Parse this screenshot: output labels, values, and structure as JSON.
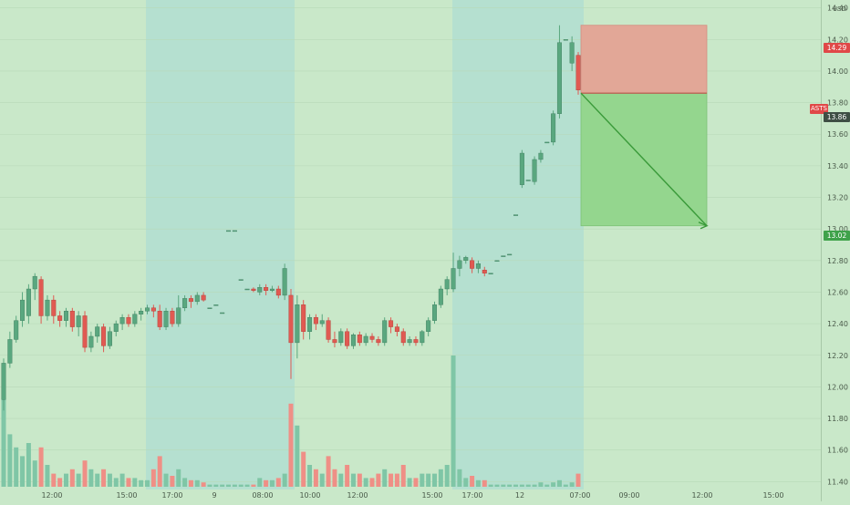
{
  "symbol": "ASTS",
  "currency": "USD",
  "price_badges": {
    "stop": "14.29",
    "entry": "13.86",
    "target": "13.02"
  },
  "colors": {
    "background": "#c9e8c9",
    "session_shade": "#b5e0d0",
    "up": "#5aa77f",
    "down": "#e05a52",
    "vol_up": "#7fc6a6",
    "vol_down": "#ef8f86",
    "risk_zone": "#e2a797",
    "reward_zone": "#94d68e",
    "arrow": "#3a9a3a"
  },
  "chart_data": {
    "type": "candlestick",
    "y_axis": {
      "ylim": [
        11.35,
        14.45
      ],
      "ticks": [
        "11.40",
        "11.60",
        "11.80",
        "12.00",
        "12.20",
        "12.40",
        "12.60",
        "12.80",
        "13.00",
        "13.20",
        "13.40",
        "13.60",
        "13.80",
        "14.00",
        "14.20",
        "14.40"
      ]
    },
    "x_ticks": [
      "12:00",
      "15:00",
      "17:00",
      "9",
      "08:00",
      "10:00",
      "12:00",
      "15:00",
      "17:00",
      "12",
      "07:00",
      "09:00",
      "12:00",
      "15:00"
    ],
    "session_shading": [
      "17:00 - 10:00",
      "16:00 - 07:00"
    ],
    "candles": [
      [
        11.92,
        12.15,
        11.85,
        12.18,
        40
      ],
      [
        12.15,
        12.3,
        12.12,
        12.35,
        24
      ],
      [
        12.3,
        12.42,
        12.28,
        12.45,
        18
      ],
      [
        12.42,
        12.55,
        12.38,
        12.6,
        14
      ],
      [
        12.45,
        12.62,
        12.4,
        12.65,
        20
      ],
      [
        12.62,
        12.7,
        12.55,
        12.72,
        12
      ],
      [
        12.68,
        12.45,
        12.4,
        12.7,
        18
      ],
      [
        12.45,
        12.55,
        12.42,
        12.58,
        10
      ],
      [
        12.55,
        12.45,
        12.4,
        12.58,
        6
      ],
      [
        12.45,
        12.42,
        12.38,
        12.48,
        4
      ],
      [
        12.42,
        12.48,
        12.38,
        12.5,
        6
      ],
      [
        12.48,
        12.38,
        12.35,
        12.5,
        8
      ],
      [
        12.38,
        12.45,
        12.32,
        12.48,
        6
      ],
      [
        12.45,
        12.25,
        12.22,
        12.48,
        12
      ],
      [
        12.25,
        12.32,
        12.22,
        12.35,
        8
      ],
      [
        12.32,
        12.38,
        12.28,
        12.4,
        6
      ],
      [
        12.38,
        12.26,
        12.22,
        12.4,
        8
      ],
      [
        12.26,
        12.35,
        12.24,
        12.38,
        6
      ],
      [
        12.35,
        12.4,
        12.32,
        12.42,
        4
      ],
      [
        12.4,
        12.44,
        12.36,
        12.46,
        6
      ],
      [
        12.44,
        12.4,
        12.38,
        12.46,
        4
      ],
      [
        12.4,
        12.46,
        12.38,
        12.48,
        4
      ],
      [
        12.46,
        12.48,
        12.42,
        12.5,
        3
      ],
      [
        12.48,
        12.5,
        12.46,
        12.52,
        3
      ],
      [
        12.5,
        12.48,
        12.44,
        12.52,
        8
      ],
      [
        12.48,
        12.38,
        12.36,
        12.52,
        14
      ],
      [
        12.38,
        12.48,
        12.36,
        12.5,
        6
      ],
      [
        12.48,
        12.4,
        12.38,
        12.5,
        5
      ],
      [
        12.4,
        12.5,
        12.38,
        12.58,
        8
      ],
      [
        12.5,
        12.56,
        12.48,
        12.58,
        4
      ],
      [
        12.56,
        12.54,
        12.5,
        12.58,
        3
      ],
      [
        12.54,
        12.58,
        12.52,
        12.6,
        3
      ],
      [
        12.58,
        12.55,
        12.54,
        12.6,
        2
      ],
      [
        12.5,
        12.5,
        12.5,
        12.5,
        1
      ],
      [
        12.52,
        12.52,
        12.52,
        12.52,
        1
      ],
      [
        12.47,
        12.47,
        12.47,
        12.47,
        1
      ],
      [
        12.99,
        12.99,
        12.99,
        12.99,
        1
      ],
      [
        12.99,
        12.99,
        12.99,
        12.99,
        1
      ],
      [
        12.68,
        12.68,
        12.68,
        12.68,
        1
      ],
      [
        12.62,
        12.62,
        12.62,
        12.62,
        1
      ],
      [
        12.62,
        12.61,
        12.6,
        12.63,
        1
      ],
      [
        12.6,
        12.63,
        12.58,
        12.65,
        4
      ],
      [
        12.63,
        12.61,
        12.58,
        12.65,
        3
      ],
      [
        12.61,
        12.62,
        12.6,
        12.64,
        3
      ],
      [
        12.62,
        12.58,
        12.56,
        12.64,
        4
      ],
      [
        12.58,
        12.75,
        12.55,
        12.78,
        6
      ],
      [
        12.58,
        12.28,
        12.05,
        12.62,
        38
      ],
      [
        12.28,
        12.52,
        12.18,
        12.58,
        28
      ],
      [
        12.52,
        12.35,
        12.3,
        12.55,
        16
      ],
      [
        12.35,
        12.44,
        12.3,
        12.46,
        10
      ],
      [
        12.44,
        12.4,
        12.36,
        12.46,
        8
      ],
      [
        12.4,
        12.42,
        12.38,
        12.46,
        6
      ],
      [
        12.42,
        12.3,
        12.28,
        12.44,
        14
      ],
      [
        12.3,
        12.28,
        12.25,
        12.35,
        8
      ],
      [
        12.28,
        12.35,
        12.26,
        12.37,
        6
      ],
      [
        12.35,
        12.26,
        12.24,
        12.37,
        10
      ],
      [
        12.26,
        12.33,
        12.24,
        12.34,
        6
      ],
      [
        12.33,
        12.28,
        12.26,
        12.35,
        6
      ],
      [
        12.28,
        12.32,
        12.26,
        12.34,
        4
      ],
      [
        12.32,
        12.3,
        12.28,
        12.34,
        4
      ],
      [
        12.3,
        12.28,
        12.26,
        12.32,
        6
      ],
      [
        12.28,
        12.42,
        12.26,
        12.44,
        8
      ],
      [
        12.42,
        12.38,
        12.34,
        12.44,
        6
      ],
      [
        12.38,
        12.35,
        12.32,
        12.4,
        6
      ],
      [
        12.35,
        12.28,
        12.26,
        12.37,
        10
      ],
      [
        12.28,
        12.3,
        12.26,
        12.32,
        4
      ],
      [
        12.3,
        12.28,
        12.26,
        12.32,
        4
      ],
      [
        12.28,
        12.35,
        12.26,
        12.36,
        6
      ],
      [
        12.35,
        12.42,
        12.32,
        12.44,
        6
      ],
      [
        12.42,
        12.52,
        12.4,
        12.54,
        6
      ],
      [
        12.52,
        12.62,
        12.5,
        12.64,
        8
      ],
      [
        12.62,
        12.68,
        12.58,
        12.7,
        10
      ],
      [
        12.62,
        12.75,
        12.6,
        12.85,
        60
      ],
      [
        12.75,
        12.8,
        12.7,
        12.83,
        8
      ],
      [
        12.8,
        12.82,
        12.78,
        12.83,
        4
      ],
      [
        12.8,
        12.75,
        12.72,
        12.82,
        5
      ],
      [
        12.75,
        12.78,
        12.72,
        12.8,
        3
      ],
      [
        12.74,
        12.72,
        12.7,
        12.76,
        3
      ],
      [
        12.72,
        12.72,
        12.72,
        12.72,
        1
      ],
      [
        12.8,
        12.8,
        12.8,
        12.8,
        1
      ],
      [
        12.83,
        12.83,
        12.83,
        12.83,
        1
      ],
      [
        12.84,
        12.84,
        12.84,
        12.84,
        1
      ],
      [
        13.09,
        13.09,
        13.09,
        13.09,
        1
      ],
      [
        13.28,
        13.48,
        13.26,
        13.5,
        1
      ],
      [
        13.31,
        13.31,
        13.31,
        13.31,
        1
      ],
      [
        13.3,
        13.44,
        13.28,
        13.46,
        1
      ],
      [
        13.44,
        13.48,
        13.42,
        13.5,
        2
      ],
      [
        13.55,
        13.55,
        13.55,
        13.55,
        1
      ],
      [
        13.55,
        13.73,
        13.53,
        13.75,
        2
      ],
      [
        13.73,
        14.18,
        13.7,
        14.29,
        3
      ],
      [
        14.2,
        14.2,
        14.2,
        14.2,
        1
      ],
      [
        14.05,
        14.18,
        14.0,
        14.22,
        2
      ],
      [
        14.1,
        13.88,
        13.85,
        14.12,
        6
      ]
    ],
    "trade_zone": {
      "stop": 14.29,
      "entry": 13.86,
      "target": 13.02
    }
  }
}
